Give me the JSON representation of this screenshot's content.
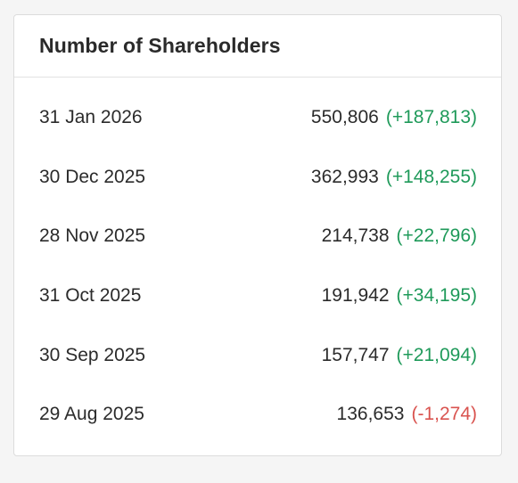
{
  "card": {
    "title": "Number of Shareholders"
  },
  "colors": {
    "positive": "#1f9a5a",
    "negative": "#d9534f"
  },
  "rows": [
    {
      "date": "31 Jan 2026",
      "value": "550,806",
      "change": "(+187,813)",
      "trend": "up"
    },
    {
      "date": "30 Dec 2025",
      "value": "362,993",
      "change": "(+148,255)",
      "trend": "up"
    },
    {
      "date": "28 Nov 2025",
      "value": "214,738",
      "change": "(+22,796)",
      "trend": "up"
    },
    {
      "date": "31 Oct 2025",
      "value": "191,942",
      "change": "(+34,195)",
      "trend": "up"
    },
    {
      "date": "30 Sep 2025",
      "value": "157,747",
      "change": "(+21,094)",
      "trend": "up"
    },
    {
      "date": "29 Aug 2025",
      "value": "136,653",
      "change": "(-1,274)",
      "trend": "down"
    }
  ]
}
